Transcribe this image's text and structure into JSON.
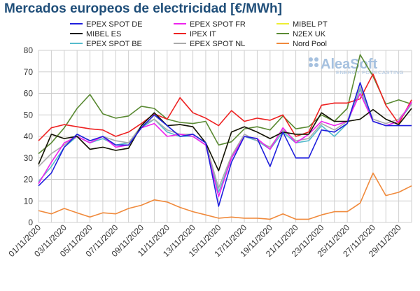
{
  "chart_data": {
    "type": "line",
    "title": "Mercados europeos de electricidad [€/MWh]",
    "ylim": [
      0,
      80
    ],
    "yticks": [
      0,
      10,
      20,
      30,
      40,
      50,
      60,
      70,
      80
    ],
    "grid": true,
    "legend_position": "top",
    "x": [
      "01/11/2020",
      "02/11/2020",
      "03/11/2020",
      "04/11/2020",
      "05/11/2020",
      "06/11/2020",
      "07/11/2020",
      "08/11/2020",
      "09/11/2020",
      "10/11/2020",
      "11/11/2020",
      "12/11/2020",
      "13/11/2020",
      "14/11/2020",
      "15/11/2020",
      "16/11/2020",
      "17/11/2020",
      "18/11/2020",
      "19/11/2020",
      "20/11/2020",
      "21/11/2020",
      "22/11/2020",
      "23/11/2020",
      "24/11/2020",
      "25/11/2020",
      "26/11/2020",
      "27/11/2020",
      "28/11/2020",
      "29/11/2020",
      "30/11/2020"
    ],
    "xtick_labels": [
      "01/11/2020",
      "03/11/2020",
      "05/11/2020",
      "07/11/2020",
      "09/11/2020",
      "11/11/2020",
      "13/11/2020",
      "15/11/2020",
      "17/11/2020",
      "19/11/2020",
      "21/11/2020",
      "23/11/2020",
      "25/11/2020",
      "27/11/2020",
      "29/11/2020"
    ],
    "series": [
      {
        "name": "EPEX SPOT DE",
        "color": "#1f1fdd",
        "values": [
          17,
          23,
          35,
          41,
          38,
          40,
          36,
          36,
          44,
          50,
          45,
          40,
          41,
          37,
          7.5,
          28,
          40,
          39,
          26,
          42,
          30,
          30,
          43,
          42,
          46,
          65,
          47,
          45,
          45,
          45
        ]
      },
      {
        "name": "EPEX SPOT FR",
        "color": "#ee22ee",
        "values": [
          18,
          28,
          37,
          40,
          37,
          40,
          35,
          36,
          44,
          46,
          40,
          41,
          40,
          36,
          12,
          30,
          40,
          39,
          34,
          44,
          37,
          41,
          47,
          45,
          47,
          60,
          47,
          45,
          47,
          56
        ]
      },
      {
        "name": "MIBEL PT",
        "color": "#eeee33",
        "values": [
          27,
          41,
          39,
          40,
          34,
          35,
          33.5,
          34.5,
          45,
          51,
          45,
          45.5,
          44.5,
          37,
          24,
          42,
          44.5,
          42,
          39,
          42,
          41,
          41,
          51,
          47,
          47,
          48,
          52.5,
          48,
          45.5,
          53
        ]
      },
      {
        "name": "MIBEL ES",
        "color": "#111111",
        "values": [
          27,
          41,
          39,
          40,
          34,
          35,
          33.5,
          34.5,
          45,
          51,
          45,
          45.5,
          44.5,
          37,
          24,
          42,
          44.5,
          42,
          39,
          42,
          41,
          41,
          51,
          47,
          47,
          48,
          52.5,
          48,
          45.5,
          53
        ]
      },
      {
        "name": "IPEX IT",
        "color": "#ee2222",
        "values": [
          38,
          44,
          45.5,
          44.5,
          43.5,
          43,
          40,
          42,
          46,
          50.5,
          48,
          58,
          51,
          48.5,
          45,
          52,
          47,
          48.5,
          47.5,
          50,
          40,
          42,
          54.5,
          55.5,
          55.5,
          57.5,
          69,
          54.5,
          46,
          57
        ]
      },
      {
        "name": "N2EX UK",
        "color": "#5a8a33",
        "values": [
          32,
          37,
          44,
          53,
          59.5,
          50.5,
          48.5,
          49.5,
          54,
          53,
          48,
          46.5,
          46,
          47,
          36,
          37.5,
          43.5,
          44.5,
          43,
          49.5,
          43.5,
          44.5,
          50,
          47,
          53,
          78,
          68,
          55,
          57,
          55
        ]
      },
      {
        "name": "EPEX SPOT BE",
        "color": "#55bbcc",
        "values": [
          19,
          26,
          35,
          40,
          37,
          39,
          36,
          37,
          44,
          48,
          42,
          40,
          40,
          36,
          14,
          30,
          40,
          38,
          34,
          42,
          37,
          38,
          45,
          40,
          46,
          62,
          47,
          45,
          47,
          55
        ]
      },
      {
        "name": "EPEX SPOT NL",
        "color": "#aaaaaa",
        "values": [
          26,
          32,
          36,
          41,
          38,
          40,
          38,
          37,
          45,
          48,
          43,
          41,
          41,
          37,
          16,
          31,
          41,
          38,
          35,
          43,
          38,
          39,
          46,
          43,
          47,
          63,
          48,
          46,
          48,
          55
        ]
      },
      {
        "name": "Nord Pool",
        "color": "#f08a3c",
        "values": [
          5.5,
          4,
          6.5,
          4.5,
          2.5,
          4.5,
          4,
          6.5,
          8,
          10.5,
          9.5,
          7,
          5,
          3.5,
          2,
          2.5,
          2,
          2,
          1.5,
          4,
          1.5,
          1.5,
          3.5,
          5,
          5,
          9,
          23,
          12.5,
          14,
          17
        ]
      }
    ]
  },
  "watermark": {
    "name": "AleaSoft",
    "tagline": "ENERGY FORECASTING"
  }
}
